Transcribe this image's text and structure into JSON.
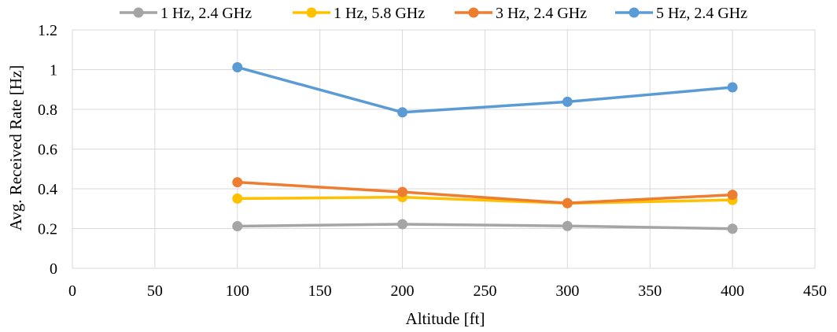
{
  "chart_data": {
    "type": "line",
    "title": "",
    "xlabel": "Altitude [ft]",
    "ylabel": "Avg. Received Rate [Hz]",
    "xlim": [
      0,
      450
    ],
    "ylim": [
      0,
      1.2
    ],
    "xticks": [
      "0",
      "50",
      "100",
      "150",
      "200",
      "250",
      "300",
      "350",
      "400",
      "450"
    ],
    "yticks": [
      "0",
      "0.2",
      "0.4",
      "0.6",
      "0.8",
      "1",
      "1.2"
    ],
    "grid": true,
    "legend_position": "top",
    "x": [
      100,
      200,
      300,
      400
    ],
    "series": [
      {
        "name": "1 Hz, 2.4 GHz",
        "color": "#A5A5A5",
        "values": [
          0.212,
          0.222,
          0.213,
          0.199
        ]
      },
      {
        "name": "1 Hz, 5.8 GHz",
        "color": "#FFC000",
        "values": [
          0.351,
          0.358,
          0.327,
          0.344
        ]
      },
      {
        "name": "3 Hz, 2.4 GHz",
        "color": "#ED7D31",
        "values": [
          0.433,
          0.384,
          0.328,
          0.37
        ]
      },
      {
        "name": "5 Hz, 2.4 GHz",
        "color": "#5B9BD5",
        "values": [
          1.012,
          0.785,
          0.838,
          0.911
        ]
      }
    ],
    "gridColor": "#D9D9D9"
  }
}
